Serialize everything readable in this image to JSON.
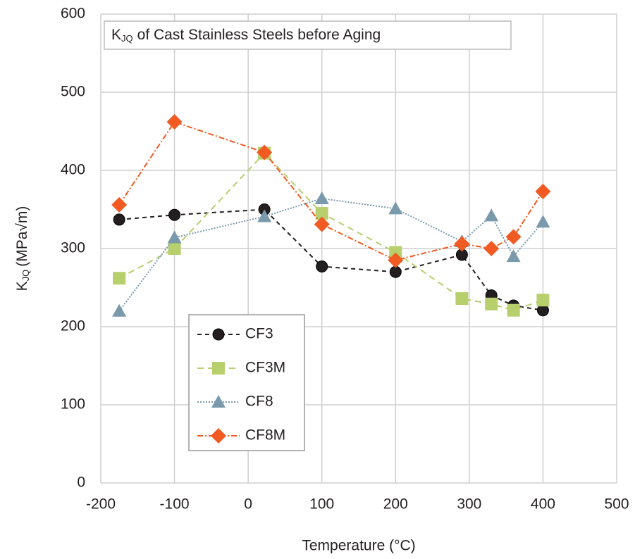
{
  "chart_data": {
    "type": "line",
    "title": {
      "symbol": "K",
      "subscript": "JQ",
      "text": "of Cast Stainless Steels before Aging"
    },
    "x_label": "Temperature (°C)",
    "y_label": {
      "symbol": "K",
      "subscript": "JQ",
      "text": "(MPa√m)"
    },
    "x": [
      -175,
      -100,
      22,
      100,
      200,
      290,
      330,
      360,
      400
    ],
    "series": [
      {
        "name": "CF3",
        "color": "#231f20",
        "marker": "circle",
        "dash": "6,5",
        "values": [
          337,
          343,
          350,
          277,
          270,
          292,
          240,
          227,
          221
        ]
      },
      {
        "name": "CF3M",
        "color": "#b8cf6e",
        "marker": "square",
        "dash": "9,6",
        "values": [
          262,
          300,
          422,
          345,
          295,
          236,
          229,
          221,
          234
        ]
      },
      {
        "name": "CF8",
        "color": "#7a9aab",
        "marker": "triangle",
        "dash": "2,2",
        "values": [
          220,
          314,
          341,
          364,
          351,
          309,
          342,
          290,
          334
        ]
      },
      {
        "name": "CF8M",
        "color": "#f15a22",
        "marker": "diamond",
        "dash": "8,3,2,3",
        "values": [
          356,
          462,
          423,
          331,
          285,
          306,
          300,
          315,
          373
        ]
      }
    ],
    "xlim": [
      -200,
      500
    ],
    "xticks": [
      -200,
      -100,
      0,
      100,
      200,
      300,
      400,
      500
    ],
    "ylim": [
      0,
      600
    ],
    "yticks": [
      0,
      100,
      200,
      300,
      400,
      500,
      600
    ],
    "grid": true,
    "legend": "lower left"
  }
}
